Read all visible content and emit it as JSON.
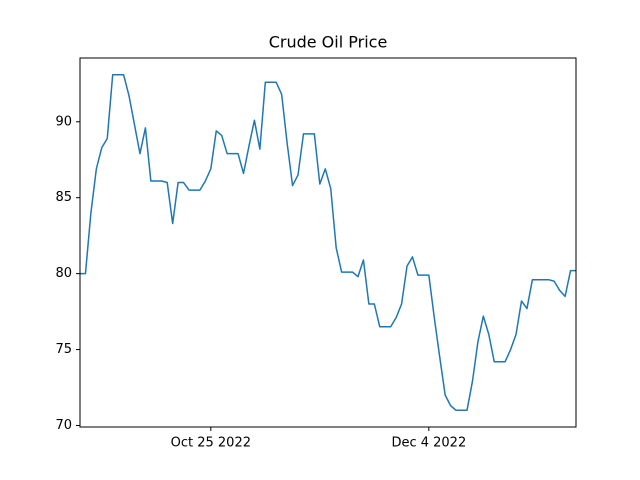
{
  "chart_data": {
    "type": "line",
    "title": "Crude Oil Price",
    "color": "#1f77b4",
    "x": [
      "2022-10-01",
      "2022-10-02",
      "2022-10-03",
      "2022-10-04",
      "2022-10-05",
      "2022-10-06",
      "2022-10-07",
      "2022-10-08",
      "2022-10-09",
      "2022-10-10",
      "2022-10-11",
      "2022-10-12",
      "2022-10-13",
      "2022-10-14",
      "2022-10-15",
      "2022-10-16",
      "2022-10-17",
      "2022-10-18",
      "2022-10-19",
      "2022-10-20",
      "2022-10-21",
      "2022-10-22",
      "2022-10-23",
      "2022-10-24",
      "2022-10-25",
      "2022-10-26",
      "2022-10-27",
      "2022-10-28",
      "2022-10-29",
      "2022-10-30",
      "2022-10-31",
      "2022-11-01",
      "2022-11-02",
      "2022-11-03",
      "2022-11-04",
      "2022-11-05",
      "2022-11-06",
      "2022-11-07",
      "2022-11-08",
      "2022-11-09",
      "2022-11-10",
      "2022-11-11",
      "2022-11-12",
      "2022-11-13",
      "2022-11-14",
      "2022-11-15",
      "2022-11-16",
      "2022-11-17",
      "2022-11-18",
      "2022-11-19",
      "2022-11-20",
      "2022-11-21",
      "2022-11-22",
      "2022-11-23",
      "2022-11-24",
      "2022-11-25",
      "2022-11-26",
      "2022-11-27",
      "2022-11-28",
      "2022-11-29",
      "2022-11-30",
      "2022-12-01",
      "2022-12-02",
      "2022-12-03",
      "2022-12-04",
      "2022-12-05",
      "2022-12-06",
      "2022-12-07",
      "2022-12-08",
      "2022-12-09",
      "2022-12-10",
      "2022-12-11",
      "2022-12-12",
      "2022-12-13",
      "2022-12-14",
      "2022-12-15",
      "2022-12-16",
      "2022-12-17",
      "2022-12-18",
      "2022-12-19",
      "2022-12-20",
      "2022-12-21",
      "2022-12-22",
      "2022-12-23",
      "2022-12-24",
      "2022-12-25",
      "2022-12-26",
      "2022-12-27",
      "2022-12-28",
      "2022-12-29",
      "2022-12-30",
      "2022-12-31"
    ],
    "values": [
      80.0,
      80.0,
      84.0,
      86.9,
      88.3,
      88.9,
      93.1,
      93.1,
      93.1,
      91.7,
      89.8,
      87.9,
      89.6,
      86.1,
      86.1,
      86.1,
      86.0,
      83.3,
      86.0,
      86.0,
      85.5,
      85.5,
      85.5,
      86.1,
      86.9,
      89.4,
      89.1,
      87.9,
      87.9,
      87.9,
      86.6,
      88.4,
      90.1,
      88.2,
      92.6,
      92.6,
      92.6,
      91.8,
      88.6,
      85.8,
      86.5,
      89.2,
      89.2,
      89.2,
      85.9,
      86.9,
      85.6,
      81.7,
      80.1,
      80.1,
      80.1,
      79.8,
      80.9,
      78.0,
      78.0,
      76.5,
      76.5,
      76.5,
      77.1,
      78.0,
      80.5,
      81.1,
      79.9,
      79.9,
      79.9,
      77.1,
      74.5,
      72.0,
      71.3,
      71.0,
      71.0,
      71.0,
      72.9,
      75.5,
      77.2,
      76.0,
      74.2,
      74.2,
      74.2,
      75.0,
      76.0,
      78.2,
      77.7,
      79.6,
      79.6,
      79.6,
      79.6,
      79.5,
      78.9,
      78.5,
      80.2,
      80.2
    ],
    "xlim": [
      "2022-10-01",
      "2022-12-31"
    ],
    "xticks": [
      {
        "value": "2022-10-25",
        "label": "Oct 25 2022"
      },
      {
        "value": "2022-12-04",
        "label": "Dec 4 2022"
      }
    ],
    "ylim": [
      69.9,
      94.2
    ],
    "yticks": [
      70,
      75,
      80,
      85,
      90
    ]
  }
}
